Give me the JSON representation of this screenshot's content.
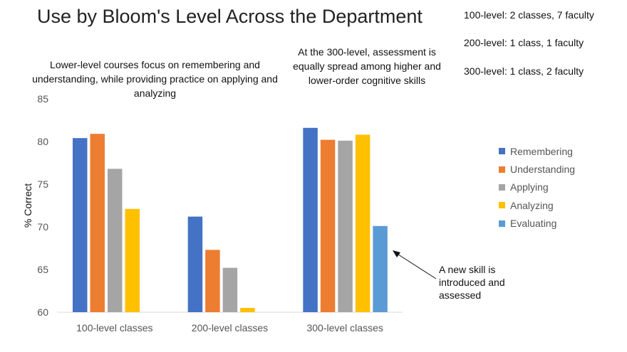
{
  "slide": {
    "title": "Use by Bloom's Level Across the Department",
    "notes": [
      "100-level: 2 classes, 7 faculty",
      "200-level: 1 class, 1 faculty",
      "300-level: 1 class, 2 faculty"
    ],
    "annotation_left": "Lower-level courses focus on remembering and understanding, while providing practice on applying and analyzing",
    "annotation_right": "At the 300-level, assessment is equally spread among higher and lower-order cognitive skills",
    "annotation_arrow": "A new skill is introduced and assessed"
  },
  "chart_data": {
    "type": "bar",
    "categories": [
      "100-level classes",
      "200-level classes",
      "300-level classes"
    ],
    "series": [
      {
        "name": "Remembering",
        "color": "#4472C4",
        "values": [
          80.4,
          71.2,
          81.6
        ]
      },
      {
        "name": "Understanding",
        "color": "#ED7D31",
        "values": [
          80.9,
          67.3,
          80.2
        ]
      },
      {
        "name": "Applying",
        "color": "#A5A5A5",
        "values": [
          76.8,
          65.2,
          80.1
        ]
      },
      {
        "name": "Analyzing",
        "color": "#FFC000",
        "values": [
          72.1,
          60.5,
          80.8
        ]
      },
      {
        "name": "Evaluating",
        "color": "#5B9BD5",
        "values": [
          null,
          null,
          70.1
        ]
      }
    ],
    "ylabel": "% Correct",
    "ylim": [
      60,
      85
    ],
    "yticks": [
      60,
      65,
      70,
      75,
      80,
      85
    ],
    "grid": false,
    "legend": "right"
  }
}
